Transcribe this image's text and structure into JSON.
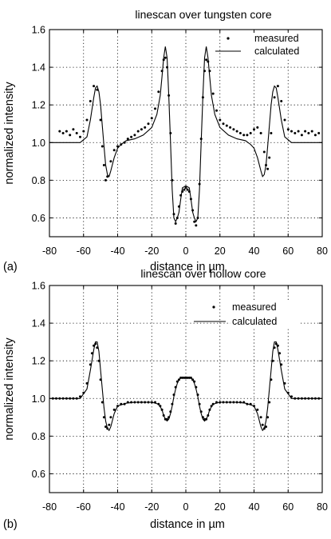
{
  "chart_data": [
    {
      "type": "scatter",
      "panel_label": "(a)",
      "title": "linescan over tungsten core",
      "xlabel": "distance in µm",
      "ylabel": "normalized intensity",
      "xlim": [
        -80,
        80
      ],
      "ylim": [
        0.5,
        1.6
      ],
      "xticks": [
        "-80",
        "-60",
        "-40",
        "-20",
        "0",
        "20",
        "40",
        "60",
        "80"
      ],
      "yticks": [
        "0.6",
        "0.8",
        "1.0",
        "1.2",
        "1.4",
        "1.6"
      ],
      "grid": true,
      "legend_position": "top-right",
      "series": [
        {
          "name": "measured",
          "style": "dots",
          "x": [
            -74,
            -72,
            -70,
            -68,
            -66,
            -64,
            -62,
            -60,
            -58,
            -56,
            -54,
            -52,
            -50,
            -49,
            -48,
            -47,
            -46,
            -44,
            -42,
            -40,
            -38,
            -36,
            -34,
            -32,
            -30,
            -28,
            -26,
            -24,
            -22,
            -20,
            -18,
            -16,
            -14,
            -13,
            -12,
            -11,
            -10,
            -9,
            -8,
            -7,
            -6,
            -5,
            -4,
            -3,
            -2,
            -1,
            0,
            1,
            2,
            3,
            4,
            5,
            6,
            7,
            8,
            9,
            10,
            11,
            12,
            13,
            14,
            16,
            18,
            20,
            22,
            24,
            26,
            28,
            30,
            32,
            34,
            36,
            38,
            40,
            42,
            44,
            46,
            47,
            48,
            49,
            50,
            52,
            54,
            56,
            58,
            60,
            62,
            64,
            66,
            68,
            70,
            72,
            74,
            76,
            78
          ],
          "y": [
            1.06,
            1.05,
            1.06,
            1.04,
            1.07,
            1.05,
            1.03,
            1.06,
            1.12,
            1.22,
            1.3,
            1.28,
            1.12,
            0.98,
            0.88,
            0.8,
            0.82,
            0.9,
            0.96,
            0.98,
            0.99,
            1.0,
            1.02,
            1.03,
            1.04,
            1.06,
            1.07,
            1.08,
            1.1,
            1.13,
            1.18,
            1.27,
            1.38,
            1.44,
            1.45,
            1.4,
            1.25,
            1.05,
            0.8,
            0.62,
            0.57,
            0.6,
            0.66,
            0.72,
            0.74,
            0.75,
            0.76,
            0.75,
            0.74,
            0.7,
            0.64,
            0.58,
            0.56,
            0.6,
            0.78,
            1.02,
            1.24,
            1.38,
            1.44,
            1.43,
            1.38,
            1.26,
            1.17,
            1.12,
            1.1,
            1.09,
            1.08,
            1.07,
            1.06,
            1.05,
            1.04,
            1.04,
            1.05,
            1.07,
            1.08,
            1.05,
            0.95,
            0.88,
            0.86,
            0.92,
            1.05,
            1.24,
            1.3,
            1.22,
            1.12,
            1.07,
            1.06,
            1.05,
            1.06,
            1.04,
            1.06,
            1.05,
            1.06,
            1.04,
            1.05
          ]
        },
        {
          "name": "calculated",
          "style": "line",
          "x": [
            -80,
            -70,
            -62,
            -58,
            -56,
            -54,
            -53,
            -52,
            -51,
            -50,
            -48,
            -47,
            -46,
            -45,
            -44,
            -42,
            -40,
            -38,
            -35,
            -30,
            -25,
            -20,
            -17,
            -15,
            -14,
            -13,
            -12,
            -11,
            -10,
            -9,
            -8,
            -7,
            -6,
            -5,
            -4,
            -3,
            -2,
            0,
            2,
            3,
            4,
            5,
            6,
            7,
            8,
            9,
            10,
            11,
            12,
            13,
            14,
            15,
            17,
            20,
            25,
            30,
            35,
            38,
            40,
            42,
            44,
            45,
            46,
            47,
            48,
            50,
            51,
            52,
            53,
            54,
            56,
            58,
            62,
            70,
            80
          ],
          "y": [
            1.0,
            1.0,
            1.0,
            1.03,
            1.12,
            1.24,
            1.29,
            1.3,
            1.27,
            1.2,
            0.98,
            0.88,
            0.83,
            0.82,
            0.85,
            0.92,
            0.97,
            0.99,
            1.01,
            1.02,
            1.04,
            1.08,
            1.15,
            1.25,
            1.35,
            1.45,
            1.51,
            1.45,
            1.25,
            1.0,
            0.75,
            0.6,
            0.58,
            0.6,
            0.63,
            0.7,
            0.76,
            0.77,
            0.76,
            0.7,
            0.63,
            0.6,
            0.58,
            0.6,
            0.75,
            1.0,
            1.25,
            1.45,
            1.51,
            1.45,
            1.35,
            1.25,
            1.15,
            1.08,
            1.04,
            1.02,
            1.01,
            0.99,
            0.97,
            0.92,
            0.85,
            0.82,
            0.83,
            0.88,
            0.98,
            1.2,
            1.27,
            1.3,
            1.29,
            1.24,
            1.12,
            1.03,
            1.0,
            1.0,
            1.0
          ]
        }
      ]
    },
    {
      "type": "scatter",
      "panel_label": "(b)",
      "title": "linescan over hollow core",
      "xlabel": "distance in µm",
      "ylabel": "normalized intensity",
      "xlim": [
        -80,
        80
      ],
      "ylim": [
        0.5,
        1.6
      ],
      "xticks": [
        "-80",
        "-60",
        "-40",
        "-20",
        "0",
        "20",
        "40",
        "60",
        "80"
      ],
      "yticks": [
        "0.6",
        "0.8",
        "1.0",
        "1.2",
        "1.4",
        "1.6"
      ],
      "grid": true,
      "legend_position": "top-right",
      "series": [
        {
          "name": "measured",
          "style": "dots",
          "x": [
            -78,
            -76,
            -74,
            -72,
            -70,
            -68,
            -66,
            -64,
            -62,
            -60,
            -58,
            -56,
            -55,
            -54,
            -53,
            -52,
            -51,
            -50,
            -49,
            -48,
            -47,
            -46,
            -45,
            -44,
            -42,
            -40,
            -38,
            -36,
            -34,
            -32,
            -30,
            -28,
            -26,
            -24,
            -22,
            -20,
            -18,
            -16,
            -15,
            -14,
            -13,
            -12,
            -11,
            -10,
            -9,
            -8,
            -7,
            -6,
            -5,
            -4,
            -3,
            -2,
            -1,
            0,
            1,
            2,
            3,
            4,
            5,
            6,
            7,
            8,
            9,
            10,
            11,
            12,
            13,
            14,
            15,
            16,
            18,
            20,
            22,
            24,
            26,
            28,
            30,
            32,
            34,
            36,
            38,
            40,
            42,
            44,
            45,
            46,
            47,
            48,
            49,
            50,
            51,
            52,
            53,
            54,
            55,
            56,
            58,
            60,
            62,
            64,
            66,
            68,
            70,
            72,
            74,
            76,
            78
          ],
          "y": [
            1.0,
            1.0,
            1.0,
            1.0,
            1.0,
            1.0,
            1.0,
            1.0,
            1.01,
            1.03,
            1.08,
            1.18,
            1.24,
            1.28,
            1.29,
            1.27,
            1.2,
            1.1,
            0.98,
            0.9,
            0.85,
            0.84,
            0.86,
            0.9,
            0.94,
            0.96,
            0.97,
            0.97,
            0.98,
            0.98,
            0.98,
            0.98,
            0.98,
            0.98,
            0.98,
            0.98,
            0.98,
            0.97,
            0.96,
            0.94,
            0.91,
            0.89,
            0.89,
            0.9,
            0.93,
            0.97,
            1.02,
            1.06,
            1.09,
            1.1,
            1.11,
            1.11,
            1.11,
            1.11,
            1.11,
            1.11,
            1.11,
            1.1,
            1.09,
            1.06,
            1.02,
            0.97,
            0.93,
            0.9,
            0.89,
            0.89,
            0.91,
            0.94,
            0.96,
            0.97,
            0.98,
            0.98,
            0.98,
            0.98,
            0.98,
            0.98,
            0.98,
            0.98,
            0.98,
            0.97,
            0.97,
            0.96,
            0.94,
            0.9,
            0.86,
            0.84,
            0.85,
            0.9,
            0.98,
            1.1,
            1.2,
            1.27,
            1.29,
            1.28,
            1.24,
            1.18,
            1.08,
            1.03,
            1.01,
            1.0,
            1.0,
            1.0,
            1.0,
            1.0,
            1.0,
            1.0,
            1.0
          ]
        },
        {
          "name": "calculated",
          "style": "line",
          "x": [
            -80,
            -70,
            -62,
            -58,
            -56,
            -54,
            -53,
            -52,
            -51,
            -50,
            -48,
            -47,
            -46,
            -45,
            -44,
            -42,
            -40,
            -35,
            -30,
            -25,
            -20,
            -16,
            -14,
            -13,
            -12,
            -11,
            -10,
            -9,
            -8,
            -7,
            -6,
            -5,
            -4,
            -3,
            -2,
            0,
            2,
            3,
            4,
            5,
            6,
            7,
            8,
            9,
            10,
            11,
            12,
            13,
            14,
            16,
            20,
            25,
            30,
            35,
            40,
            42,
            44,
            45,
            46,
            47,
            48,
            50,
            51,
            52,
            53,
            54,
            56,
            58,
            62,
            70,
            80
          ],
          "y": [
            1.0,
            1.0,
            1.0,
            1.05,
            1.15,
            1.26,
            1.3,
            1.3,
            1.25,
            1.15,
            0.95,
            0.88,
            0.84,
            0.83,
            0.85,
            0.92,
            0.96,
            0.975,
            0.98,
            0.98,
            0.98,
            0.97,
            0.94,
            0.91,
            0.89,
            0.88,
            0.89,
            0.92,
            0.96,
            1.01,
            1.05,
            1.08,
            1.1,
            1.11,
            1.11,
            1.11,
            1.11,
            1.11,
            1.1,
            1.08,
            1.05,
            1.01,
            0.96,
            0.92,
            0.89,
            0.88,
            0.89,
            0.91,
            0.94,
            0.97,
            0.98,
            0.98,
            0.98,
            0.975,
            0.96,
            0.92,
            0.85,
            0.83,
            0.84,
            0.88,
            0.95,
            1.15,
            1.25,
            1.3,
            1.3,
            1.26,
            1.15,
            1.05,
            1.0,
            1.0,
            1.0
          ]
        }
      ]
    }
  ]
}
